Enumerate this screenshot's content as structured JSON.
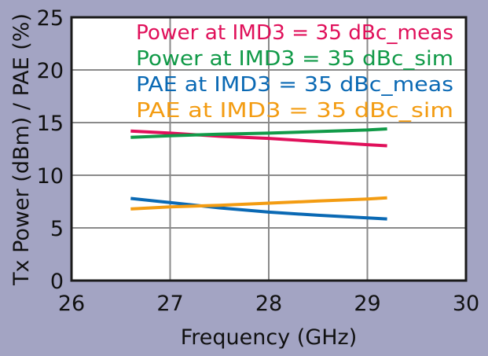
{
  "chart_data": {
    "type": "line",
    "xlabel": "Frequency (GHz)",
    "ylabel": "Tx Power (dBm) / PAE (%)",
    "xlim": [
      26,
      30
    ],
    "ylim": [
      0,
      25
    ],
    "x_ticks": [
      26,
      27,
      28,
      29,
      30
    ],
    "y_ticks": [
      0,
      5,
      10,
      15,
      20,
      25
    ],
    "x_tick_labels": [
      "26",
      "27",
      "28",
      "29",
      "30"
    ],
    "y_tick_labels": [
      "0",
      "5",
      "10",
      "15",
      "20",
      "25"
    ],
    "grid": true,
    "legend_position": "top",
    "series": [
      {
        "name": "Power at IMD3 = 35 dBc_meas",
        "color": "#e0105a",
        "x": [
          26.6,
          27.0,
          27.5,
          28.0,
          28.5,
          29.0,
          29.2
        ],
        "y": [
          14.2,
          14.0,
          13.7,
          13.5,
          13.2,
          12.9,
          12.8
        ]
      },
      {
        "name": "Power at IMD3 = 35 dBc_sim",
        "color": "#119a48",
        "x": [
          26.6,
          27.0,
          27.5,
          28.0,
          28.5,
          29.0,
          29.2
        ],
        "y": [
          13.6,
          13.75,
          13.9,
          14.0,
          14.15,
          14.3,
          14.4
        ]
      },
      {
        "name": "PAE at IMD3 = 35 dBc_meas",
        "color": "#0a69b4",
        "x": [
          26.6,
          27.0,
          27.5,
          28.0,
          28.5,
          29.0,
          29.2
        ],
        "y": [
          7.8,
          7.4,
          6.9,
          6.5,
          6.2,
          5.95,
          5.85
        ]
      },
      {
        "name": "PAE at IMD3 = 35 dBc_sim",
        "color": "#f39c12",
        "x": [
          26.6,
          27.0,
          27.5,
          28.0,
          28.5,
          29.0,
          29.2
        ],
        "y": [
          6.8,
          7.0,
          7.15,
          7.35,
          7.55,
          7.75,
          7.85
        ]
      }
    ]
  }
}
